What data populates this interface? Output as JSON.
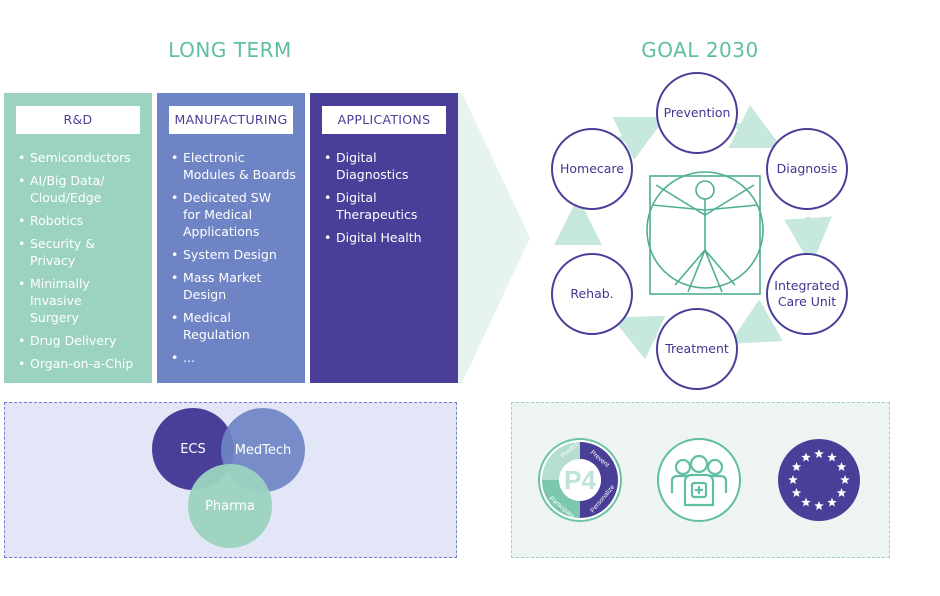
{
  "left_heading": "LONG TERM",
  "right_heading": "GOAL 2030",
  "columns": [
    {
      "title": "R&D",
      "items": [
        "Semiconductors",
        "AI/Big Data/\nCloud/Edge",
        "Robotics",
        "Security & Privacy",
        "Minimally Invasive\nSurgery",
        "Drug Delivery",
        "Organ-on-a-Chip",
        "..."
      ]
    },
    {
      "title": "MANUFACTURING",
      "items": [
        "Electronic\nModules & Boards",
        "Dedicated SW\nfor Medical\nApplications",
        "System Design",
        "Mass Market\nDesign",
        "Medical\nRegulation",
        "..."
      ]
    },
    {
      "title": "APPLICATIONS",
      "items": [
        "Digital\nDiagnostics",
        "Digital\nTherapeutics",
        "Digital Health"
      ]
    }
  ],
  "cycle": {
    "prevention": "Prevention",
    "diagnosis": "Diagnosis",
    "integrated": "Integrated\nCare Unit",
    "treatment": "Treatment",
    "rehab": "Rehab.",
    "homecare": "Homecare"
  },
  "venn": {
    "ecs": "ECS",
    "medtech": "MedTech",
    "pharma": "Pharma"
  },
  "p4_logo": {
    "center": "P4",
    "ring": [
      "Predict",
      "Prevent",
      "Participate",
      "Personalize"
    ]
  },
  "icons": [
    "p4-logo",
    "care-team-icon",
    "eu-flag-icon"
  ],
  "colors": {
    "rd": "#9bd3c0",
    "manufacturing": "#6f84c4",
    "applications": "#4a3f98",
    "accent": "#5fbea4",
    "node_border": "#4a3f98"
  }
}
